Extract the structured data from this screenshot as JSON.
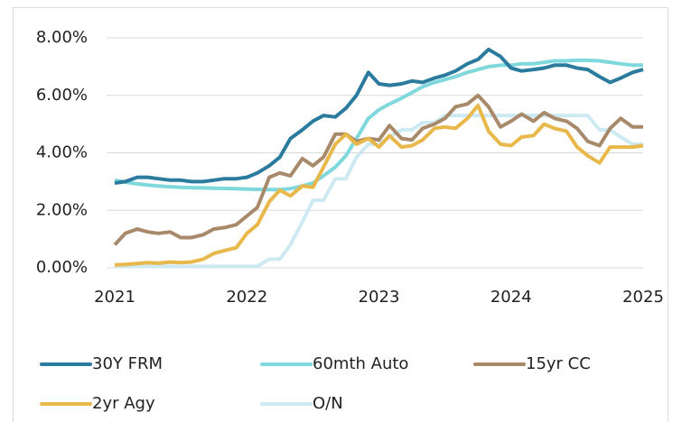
{
  "chart_data": {
    "type": "line",
    "x": [
      2021,
      2021.08,
      2021.17,
      2021.25,
      2021.33,
      2021.42,
      2021.5,
      2021.58,
      2021.67,
      2021.75,
      2021.83,
      2021.92,
      2022,
      2022.08,
      2022.17,
      2022.25,
      2022.33,
      2022.42,
      2022.5,
      2022.58,
      2022.67,
      2022.75,
      2022.83,
      2022.92,
      2023,
      2023.08,
      2023.17,
      2023.25,
      2023.33,
      2023.42,
      2023.5,
      2023.58,
      2023.67,
      2023.75,
      2023.83,
      2023.92,
      2024,
      2024.08,
      2024.17,
      2024.25,
      2024.33,
      2024.42,
      2024.5,
      2024.58,
      2024.67,
      2024.75,
      2024.83,
      2024.92,
      2025
    ],
    "xlim": [
      2021,
      2025
    ],
    "xticks": [
      2021,
      2022,
      2023,
      2024,
      2025
    ],
    "ylim": [
      0,
      8
    ],
    "yticks": [
      {
        "value": 0,
        "label": "0.00%"
      },
      {
        "value": 2,
        "label": "2.00%"
      },
      {
        "value": 4,
        "label": "4.00%"
      },
      {
        "value": 6,
        "label": "6.00%"
      },
      {
        "value": 8,
        "label": "8.00%"
      }
    ],
    "grid": true,
    "legend": "bottom",
    "series": [
      {
        "name": "30Y FRM",
        "color": "#2a7b9d",
        "values": [
          2.95,
          3.0,
          3.15,
          3.15,
          3.1,
          3.05,
          3.05,
          3.0,
          3.0,
          3.05,
          3.1,
          3.1,
          3.15,
          3.3,
          3.55,
          3.85,
          4.5,
          4.8,
          5.1,
          5.3,
          5.25,
          5.55,
          6.0,
          6.8,
          6.4,
          6.35,
          6.4,
          6.5,
          6.45,
          6.6,
          6.7,
          6.85,
          7.1,
          7.25,
          7.6,
          7.35,
          6.95,
          6.85,
          6.9,
          6.95,
          7.05,
          7.05,
          6.95,
          6.9,
          6.65,
          6.45,
          6.6,
          6.8,
          6.9
        ]
      },
      {
        "name": "60mth Auto",
        "color": "#7fd8dc",
        "values": [
          3.05,
          2.98,
          2.92,
          2.88,
          2.85,
          2.82,
          2.8,
          2.79,
          2.78,
          2.77,
          2.76,
          2.75,
          2.74,
          2.73,
          2.72,
          2.72,
          2.75,
          2.85,
          2.95,
          3.2,
          3.5,
          3.9,
          4.5,
          5.2,
          5.5,
          5.7,
          5.9,
          6.1,
          6.3,
          6.45,
          6.55,
          6.65,
          6.8,
          6.9,
          7.0,
          7.05,
          7.05,
          7.1,
          7.1,
          7.15,
          7.2,
          7.2,
          7.22,
          7.22,
          7.2,
          7.15,
          7.1,
          7.05,
          7.05
        ]
      },
      {
        "name": "15yr CC",
        "color": "#a88a6b",
        "values": [
          0.8,
          1.2,
          1.35,
          1.25,
          1.2,
          1.25,
          1.05,
          1.05,
          1.15,
          1.35,
          1.4,
          1.5,
          1.8,
          2.1,
          3.15,
          3.3,
          3.2,
          3.8,
          3.55,
          3.85,
          4.65,
          4.65,
          4.4,
          4.5,
          4.45,
          4.95,
          4.5,
          4.45,
          4.85,
          5.0,
          5.2,
          5.6,
          5.7,
          6.0,
          5.6,
          4.9,
          5.1,
          5.35,
          5.1,
          5.4,
          5.2,
          5.1,
          4.85,
          4.4,
          4.25,
          4.85,
          5.2,
          4.9,
          4.9
        ]
      },
      {
        "name": "2yr Agy",
        "color": "#e8b84a",
        "values": [
          0.1,
          0.12,
          0.15,
          0.18,
          0.16,
          0.2,
          0.18,
          0.2,
          0.3,
          0.5,
          0.6,
          0.7,
          1.2,
          1.5,
          2.3,
          2.7,
          2.5,
          2.85,
          2.8,
          3.5,
          4.3,
          4.65,
          4.3,
          4.5,
          4.2,
          4.6,
          4.2,
          4.25,
          4.45,
          4.85,
          4.9,
          4.85,
          5.2,
          5.65,
          4.75,
          4.3,
          4.25,
          4.55,
          4.6,
          5.0,
          4.85,
          4.75,
          4.2,
          3.9,
          3.65,
          4.2,
          4.2,
          4.2,
          4.25
        ]
      },
      {
        "name": "O/N",
        "color": "#cde9f2",
        "values": [
          0.05,
          0.05,
          0.05,
          0.05,
          0.05,
          0.05,
          0.05,
          0.05,
          0.05,
          0.05,
          0.05,
          0.05,
          0.05,
          0.05,
          0.3,
          0.3,
          0.8,
          1.6,
          2.35,
          2.35,
          3.1,
          3.1,
          3.85,
          4.3,
          4.3,
          4.55,
          4.8,
          4.8,
          5.05,
          5.05,
          5.3,
          5.3,
          5.3,
          5.3,
          5.3,
          5.3,
          5.3,
          5.3,
          5.3,
          5.3,
          5.3,
          5.3,
          5.3,
          5.3,
          4.8,
          4.8,
          4.55,
          4.3,
          4.3
        ]
      }
    ]
  }
}
